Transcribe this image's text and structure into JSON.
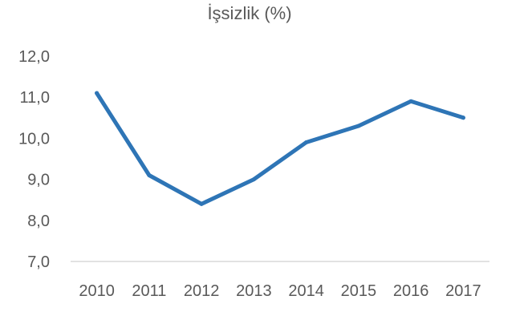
{
  "chart_data": {
    "type": "line",
    "title": "İşsizlik (%)",
    "xlabel": "",
    "ylabel": "",
    "categories": [
      "2010",
      "2011",
      "2012",
      "2013",
      "2014",
      "2015",
      "2016",
      "2017"
    ],
    "series": [
      {
        "values": [
          11.1,
          9.1,
          8.4,
          9.0,
          9.9,
          10.3,
          10.9,
          10.5
        ]
      }
    ],
    "ylim": [
      7.0,
      12.0
    ],
    "yticks": [
      "7,0",
      "8,0",
      "9,0",
      "10,0",
      "11,0",
      "12,0"
    ],
    "grid": false,
    "legend": "none",
    "colors": {
      "line": "#2E75B6",
      "text": "#595959",
      "axis": "#D9D9D9"
    }
  }
}
